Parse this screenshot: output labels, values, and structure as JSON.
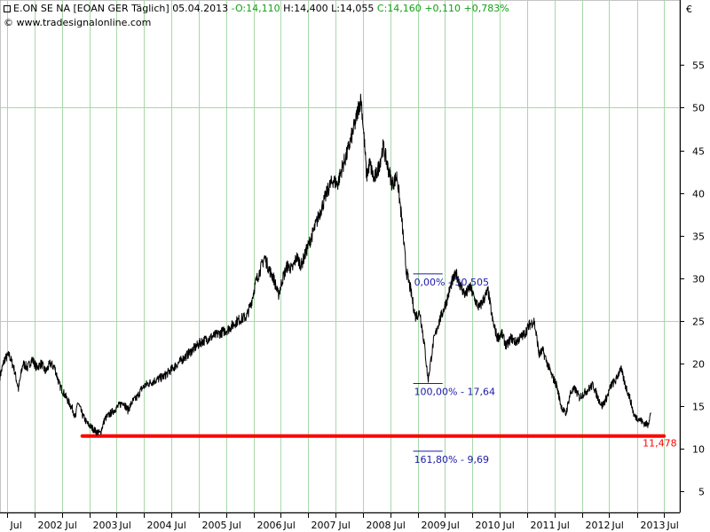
{
  "header": {
    "name": "E.ON SE NA",
    "exchange": "[EOAN GER",
    "interval": "Täglich]",
    "date": "05.04.2013",
    "open": "O:14,110",
    "high": "H:14,400",
    "low": "L:14,055",
    "close": "C:14,160",
    "change": "+0,110",
    "change_pct": "+0,783%",
    "copyright": "© www.tradesignalonline.com"
  },
  "colors": {
    "price_line": "#000000",
    "grid": "#a8d8a8",
    "support": "#ff0000",
    "fib": "#1a1aaa",
    "gain": "#12a012"
  },
  "chart_data": {
    "type": "line",
    "currency": "€",
    "ylim": [
      2.5,
      59
    ],
    "y_ticks": [
      5,
      10,
      15,
      20,
      25,
      30,
      35,
      40,
      45,
      50,
      55
    ],
    "x_range": [
      "2001-05-15",
      "2013-10-15"
    ],
    "x_ticks": [
      {
        "label": "Jul",
        "date": "2001-07-01"
      },
      {
        "label": "2002",
        "date": "2002-01-01"
      },
      {
        "label": "Jul",
        "date": "2002-07-01"
      },
      {
        "label": "2003",
        "date": "2003-01-01"
      },
      {
        "label": "Jul",
        "date": "2003-07-01"
      },
      {
        "label": "2004",
        "date": "2004-01-01"
      },
      {
        "label": "Jul",
        "date": "2004-07-01"
      },
      {
        "label": "2005",
        "date": "2005-01-01"
      },
      {
        "label": "Jul",
        "date": "2005-07-01"
      },
      {
        "label": "2006",
        "date": "2006-01-01"
      },
      {
        "label": "Jul",
        "date": "2006-07-01"
      },
      {
        "label": "2007",
        "date": "2007-01-01"
      },
      {
        "label": "Jul",
        "date": "2007-07-01"
      },
      {
        "label": "2008",
        "date": "2008-01-01"
      },
      {
        "label": "Jul",
        "date": "2008-07-01"
      },
      {
        "label": "2009",
        "date": "2009-01-01"
      },
      {
        "label": "Jul",
        "date": "2009-07-01"
      },
      {
        "label": "2010",
        "date": "2010-01-01"
      },
      {
        "label": "Jul",
        "date": "2010-07-01"
      },
      {
        "label": "2011",
        "date": "2011-01-01"
      },
      {
        "label": "Jul",
        "date": "2011-07-01"
      },
      {
        "label": "2012",
        "date": "2012-01-01"
      },
      {
        "label": "Jul",
        "date": "2012-07-01"
      },
      {
        "label": "2013",
        "date": "2013-01-01"
      },
      {
        "label": "Jul",
        "date": "2013-07-01"
      }
    ],
    "major_grid_y": [
      25,
      50
    ],
    "series": [
      {
        "values": [
          [
            "2001-05-15",
            18.5
          ],
          [
            "2001-06-15",
            20.5
          ],
          [
            "2001-07-15",
            21.0
          ],
          [
            "2001-08-15",
            19.5
          ],
          [
            "2001-09-15",
            17.0
          ],
          [
            "2001-10-15",
            20.0
          ],
          [
            "2001-11-15",
            19.5
          ],
          [
            "2001-12-15",
            20.5
          ],
          [
            "2002-01-15",
            19.5
          ],
          [
            "2002-02-15",
            20.0
          ],
          [
            "2002-03-15",
            19.0
          ],
          [
            "2002-04-15",
            20.0
          ],
          [
            "2002-05-15",
            19.5
          ],
          [
            "2002-06-15",
            17.5
          ],
          [
            "2002-07-15",
            16.5
          ],
          [
            "2002-08-15",
            15.5
          ],
          [
            "2002-09-15",
            14.5
          ],
          [
            "2002-10-01",
            13.5
          ],
          [
            "2002-10-15",
            15.5
          ],
          [
            "2002-11-15",
            14.0
          ],
          [
            "2002-12-15",
            13.0
          ],
          [
            "2003-01-15",
            12.5
          ],
          [
            "2003-02-15",
            12.0
          ],
          [
            "2003-03-15",
            11.8
          ],
          [
            "2003-04-15",
            13.5
          ],
          [
            "2003-05-15",
            14.0
          ],
          [
            "2003-06-15",
            14.5
          ],
          [
            "2003-07-15",
            15.0
          ],
          [
            "2003-08-15",
            15.5
          ],
          [
            "2003-09-15",
            14.5
          ],
          [
            "2003-10-15",
            15.5
          ],
          [
            "2003-11-15",
            16.0
          ],
          [
            "2003-12-15",
            17.0
          ],
          [
            "2004-01-15",
            17.5
          ],
          [
            "2004-03-15",
            18.0
          ],
          [
            "2004-05-15",
            18.5
          ],
          [
            "2004-07-15",
            19.5
          ],
          [
            "2004-09-15",
            20.5
          ],
          [
            "2004-11-15",
            21.5
          ],
          [
            "2005-01-15",
            22.5
          ],
          [
            "2005-03-15",
            23.0
          ],
          [
            "2005-05-15",
            23.5
          ],
          [
            "2005-07-15",
            24.0
          ],
          [
            "2005-09-15",
            25.0
          ],
          [
            "2005-11-15",
            25.5
          ],
          [
            "2005-12-15",
            27.0
          ],
          [
            "2006-01-15",
            29.5
          ],
          [
            "2006-02-15",
            31.0
          ],
          [
            "2006-03-15",
            32.5
          ],
          [
            "2006-04-15",
            31.0
          ],
          [
            "2006-05-15",
            30.0
          ],
          [
            "2006-06-15",
            28.0
          ],
          [
            "2006-07-15",
            30.0
          ],
          [
            "2006-08-15",
            31.5
          ],
          [
            "2006-09-15",
            31.0
          ],
          [
            "2006-10-15",
            32.5
          ],
          [
            "2006-11-15",
            31.5
          ],
          [
            "2006-12-15",
            33.0
          ],
          [
            "2007-01-15",
            34.5
          ],
          [
            "2007-02-15",
            36.0
          ],
          [
            "2007-03-15",
            37.5
          ],
          [
            "2007-04-15",
            39.0
          ],
          [
            "2007-05-15",
            40.5
          ],
          [
            "2007-06-15",
            41.5
          ],
          [
            "2007-07-15",
            41.0
          ],
          [
            "2007-08-15",
            43.0
          ],
          [
            "2007-09-15",
            44.5
          ],
          [
            "2007-10-15",
            46.5
          ],
          [
            "2007-11-15",
            48.5
          ],
          [
            "2007-12-01",
            50.0
          ],
          [
            "2007-12-20",
            51.0
          ],
          [
            "2008-01-10",
            46.0
          ],
          [
            "2008-01-25",
            42.0
          ],
          [
            "2008-02-15",
            43.5
          ],
          [
            "2008-03-15",
            41.5
          ],
          [
            "2008-04-15",
            43.0
          ],
          [
            "2008-05-15",
            45.5
          ],
          [
            "2008-06-15",
            43.0
          ],
          [
            "2008-07-15",
            41.0
          ],
          [
            "2008-08-15",
            42.0
          ],
          [
            "2008-09-15",
            37.0
          ],
          [
            "2008-10-15",
            31.0
          ],
          [
            "2008-11-15",
            28.5
          ],
          [
            "2008-12-15",
            25.5
          ],
          [
            "2009-01-15",
            26.0
          ],
          [
            "2009-02-15",
            22.0
          ],
          [
            "2009-03-10",
            18.0
          ],
          [
            "2009-04-15",
            22.5
          ],
          [
            "2009-05-15",
            24.5
          ],
          [
            "2009-06-15",
            26.0
          ],
          [
            "2009-07-15",
            27.5
          ],
          [
            "2009-08-15",
            29.5
          ],
          [
            "2009-09-15",
            30.5
          ],
          [
            "2009-10-15",
            29.0
          ],
          [
            "2009-11-15",
            28.0
          ],
          [
            "2009-12-15",
            29.0
          ],
          [
            "2010-01-15",
            27.5
          ],
          [
            "2010-02-15",
            26.5
          ],
          [
            "2010-03-15",
            27.5
          ],
          [
            "2010-04-15",
            28.5
          ],
          [
            "2010-05-15",
            25.0
          ],
          [
            "2010-06-15",
            23.0
          ],
          [
            "2010-07-15",
            23.5
          ],
          [
            "2010-08-15",
            22.0
          ],
          [
            "2010-09-15",
            23.0
          ],
          [
            "2010-10-15",
            22.5
          ],
          [
            "2010-11-15",
            23.0
          ],
          [
            "2010-12-15",
            23.5
          ],
          [
            "2011-01-15",
            24.5
          ],
          [
            "2011-02-15",
            25.0
          ],
          [
            "2011-03-10",
            22.5
          ],
          [
            "2011-03-20",
            21.0
          ],
          [
            "2011-04-15",
            21.5
          ],
          [
            "2011-05-15",
            20.0
          ],
          [
            "2011-06-15",
            18.5
          ],
          [
            "2011-07-15",
            17.5
          ],
          [
            "2011-08-15",
            15.0
          ],
          [
            "2011-09-15",
            14.0
          ],
          [
            "2011-10-15",
            16.5
          ],
          [
            "2011-11-15",
            17.0
          ],
          [
            "2011-12-15",
            16.0
          ],
          [
            "2012-01-15",
            16.5
          ],
          [
            "2012-02-15",
            17.0
          ],
          [
            "2012-03-15",
            17.5
          ],
          [
            "2012-04-15",
            16.0
          ],
          [
            "2012-05-15",
            15.0
          ],
          [
            "2012-06-15",
            16.0
          ],
          [
            "2012-07-15",
            17.5
          ],
          [
            "2012-08-15",
            18.0
          ],
          [
            "2012-09-15",
            19.5
          ],
          [
            "2012-10-15",
            17.5
          ],
          [
            "2012-11-15",
            16.0
          ],
          [
            "2012-12-15",
            13.8
          ],
          [
            "2013-01-15",
            13.5
          ],
          [
            "2013-02-15",
            13.0
          ],
          [
            "2013-03-15",
            12.8
          ],
          [
            "2013-04-05",
            14.2
          ]
        ]
      }
    ],
    "annotations": [
      {
        "id": "fib-0",
        "text": "0,00% - 30,505",
        "value": 30.505,
        "x_from": "2008-12-01",
        "x_to": "2009-06-15"
      },
      {
        "id": "fib-100",
        "text": "100,00% - 17,64",
        "value": 17.64,
        "x_from": "2008-12-01",
        "x_to": "2009-06-15"
      },
      {
        "id": "fib-161",
        "text": "161,80% - 9,69",
        "value": 9.69,
        "x_from": "2008-12-01",
        "x_to": "2009-06-15"
      }
    ],
    "support_line": {
      "label": "11,478",
      "value": 11.478,
      "x_from": "2002-11-15",
      "x_to": "2013-07-01"
    }
  }
}
